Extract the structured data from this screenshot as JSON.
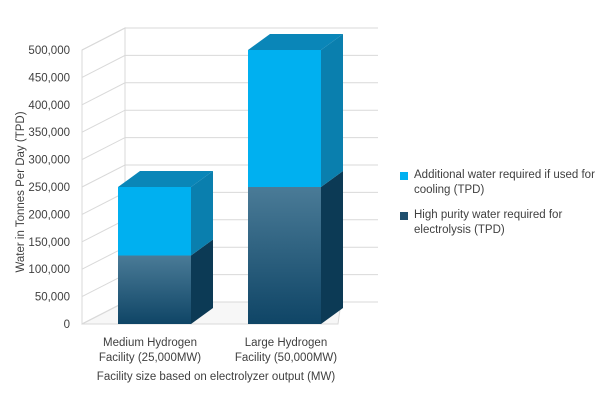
{
  "chart_data": {
    "type": "bar",
    "stacked": true,
    "three_d": true,
    "categories": [
      [
        "Medium Hydrogen",
        "Facility (25,000MW)"
      ],
      [
        "Large Hydrogen",
        "Facility (50,000MW)"
      ]
    ],
    "series": [
      {
        "name": "High purity water required for electrolysis (TPD)",
        "color": "#1f5f82",
        "values": [
          125000,
          250000
        ]
      },
      {
        "name": "Additional water required if used for cooling (TPD)",
        "color": "#00b0f0",
        "values": [
          125000,
          250000
        ]
      }
    ],
    "xlabel": "Facility size based on electrolyzer output (MW)",
    "ylabel": "Water in Tonnes Per Day (TPD)",
    "ylim": [
      0,
      500000
    ],
    "yticks": [
      0,
      50000,
      100000,
      150000,
      200000,
      250000,
      300000,
      350000,
      400000,
      450000,
      500000
    ],
    "grid": true,
    "legend_position": "right"
  }
}
